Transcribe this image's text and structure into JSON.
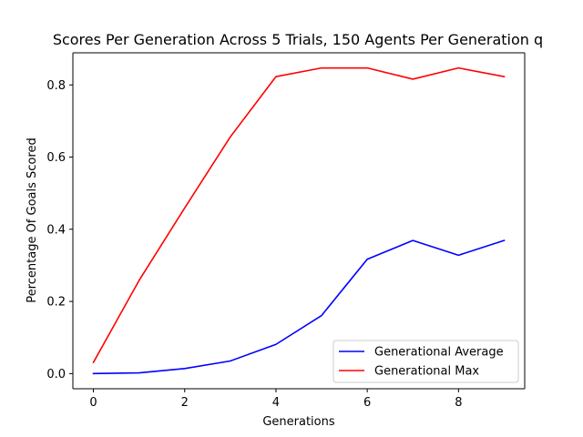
{
  "chart_data": {
    "type": "line",
    "title": "Scores Per Generation Across 5 Trials, 150 Agents Per Generation q",
    "xlabel": "Generations",
    "ylabel": "Percentage Of Goals Scored",
    "x": [
      0,
      1,
      2,
      3,
      4,
      5,
      6,
      7,
      8,
      9
    ],
    "xlim": [
      -0.45,
      9.45
    ],
    "ylim": [
      -0.042,
      0.889
    ],
    "xticks": [
      0,
      2,
      4,
      6,
      8
    ],
    "yticks": [
      0.0,
      0.2,
      0.4,
      0.6,
      0.8
    ],
    "xtick_labels": [
      "0",
      "2",
      "4",
      "6",
      "8"
    ],
    "ytick_labels": [
      "0.0",
      "0.2",
      "0.4",
      "0.6",
      "0.8"
    ],
    "grid": false,
    "legend_position": "lower-right",
    "series": [
      {
        "name": "Generational Average",
        "color": "#0000ff",
        "values": [
          0.0,
          0.002,
          0.014,
          0.035,
          0.081,
          0.161,
          0.317,
          0.369,
          0.328,
          0.369
        ]
      },
      {
        "name": "Generational Max",
        "color": "#ff0000",
        "values": [
          0.031,
          0.258,
          0.459,
          0.656,
          0.823,
          0.847,
          0.847,
          0.816,
          0.847,
          0.823
        ]
      }
    ]
  }
}
